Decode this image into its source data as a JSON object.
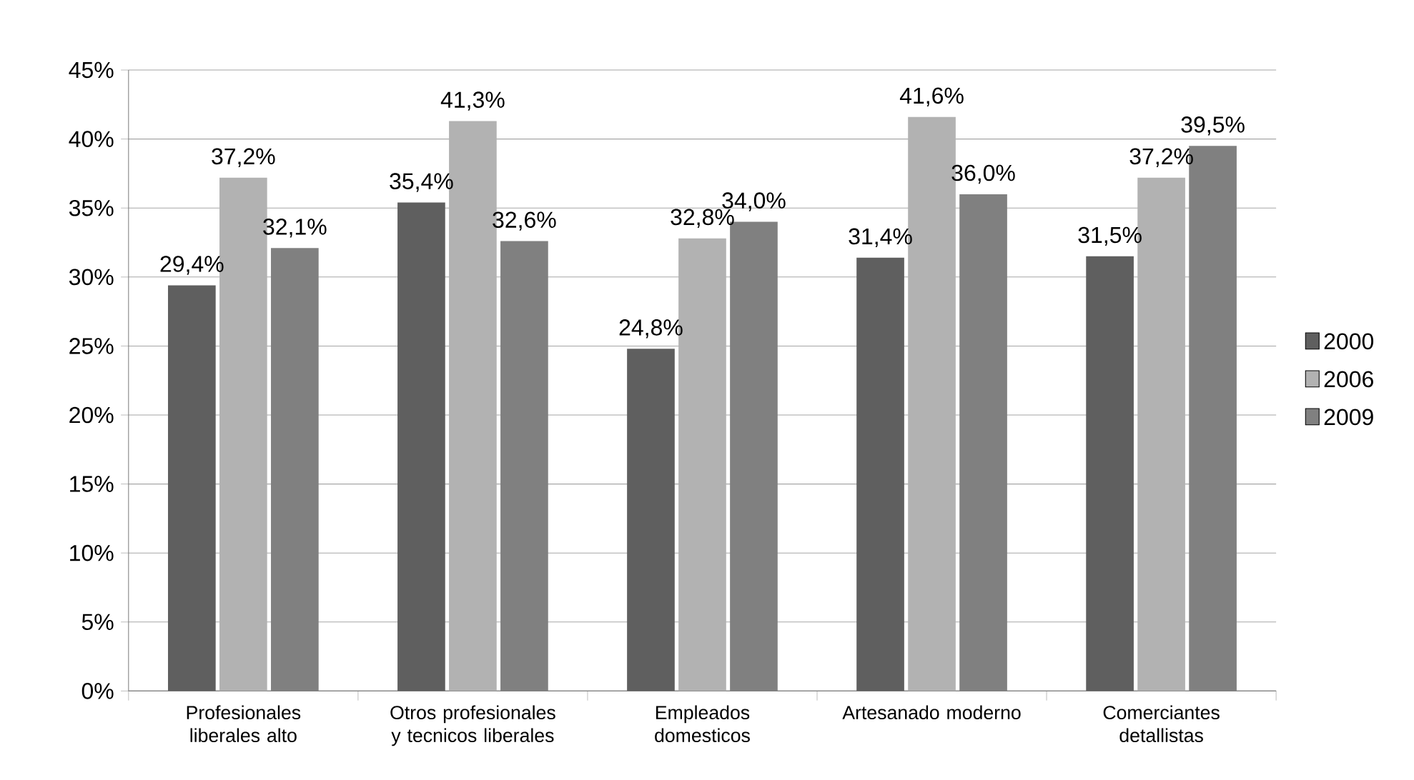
{
  "chart_data": {
    "type": "bar",
    "categories": [
      "Profesionales liberales alto",
      "Otros profesionales y tecnicos liberales",
      "Empleados domesticos",
      "Artesanado moderno",
      "Comerciantes detallistas"
    ],
    "series": [
      {
        "name": "2000",
        "color": "#5f5f5f",
        "values": [
          29.4,
          35.4,
          24.8,
          31.4,
          31.5
        ],
        "value_labels": [
          "29,4%",
          "35,4%",
          "24,8%",
          "31,4%",
          "31,5%"
        ]
      },
      {
        "name": "2006",
        "color": "#b2b2b2",
        "values": [
          37.2,
          41.3,
          32.8,
          41.6,
          37.2
        ],
        "value_labels": [
          "37,2%",
          "41,3%",
          "32,8%",
          "41,6%",
          "37,2%"
        ]
      },
      {
        "name": "2009",
        "color": "#808080",
        "values": [
          32.1,
          32.6,
          34.0,
          36.0,
          39.5
        ],
        "value_labels": [
          "32,1%",
          "32,6%",
          "34,0%",
          "36,0%",
          "39,5%"
        ]
      }
    ],
    "ylim": [
      0,
      45
    ],
    "yticks": [
      {
        "value": 0,
        "label": "0%"
      },
      {
        "value": 5,
        "label": "5%"
      },
      {
        "value": 10,
        "label": "10%"
      },
      {
        "value": 15,
        "label": "15%"
      },
      {
        "value": 20,
        "label": "20%"
      },
      {
        "value": 25,
        "label": "25%"
      },
      {
        "value": 30,
        "label": "30%"
      },
      {
        "value": 35,
        "label": "35%"
      },
      {
        "value": 40,
        "label": "40%"
      },
      {
        "value": 45,
        "label": "45%"
      }
    ],
    "grid": "y",
    "legend": "right"
  }
}
